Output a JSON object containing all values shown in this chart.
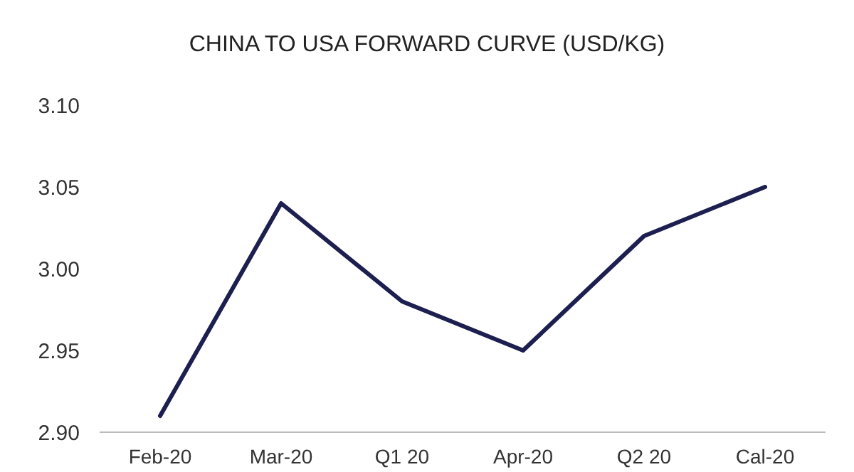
{
  "chart_data": {
    "type": "line",
    "title": "CHINA TO USA FORWARD CURVE (USD/KG)",
    "categories": [
      "Feb-20",
      "Mar-20",
      "Q1 20",
      "Apr-20",
      "Q2 20",
      "Cal-20"
    ],
    "series": [
      {
        "color": "#1c1f4f",
        "values": [
          2.91,
          3.04,
          2.98,
          2.95,
          3.02,
          3.05
        ]
      }
    ],
    "ylim": [
      2.9,
      3.1
    ],
    "yticks": [
      {
        "value": 2.9,
        "label": "2.90"
      },
      {
        "value": 2.95,
        "label": "2.95"
      },
      {
        "value": 3.0,
        "label": "3.00"
      },
      {
        "value": 3.05,
        "label": "3.05"
      },
      {
        "value": 3.1,
        "label": "3.10"
      }
    ],
    "grid": false,
    "marker": "none",
    "line_style": "solid"
  }
}
